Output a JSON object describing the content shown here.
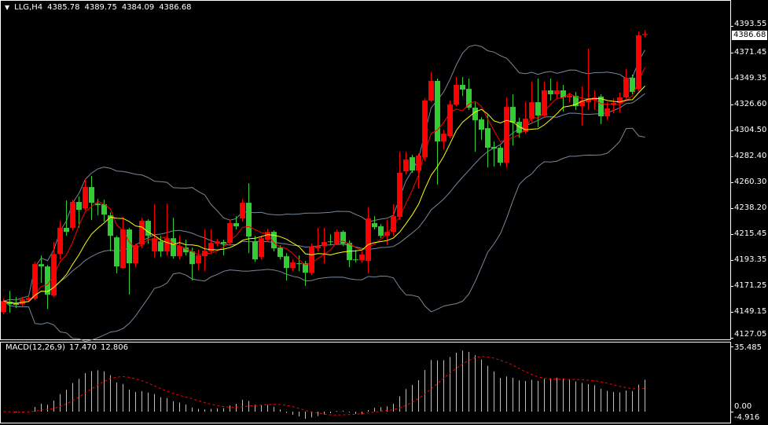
{
  "header": {
    "menu_icon": "triangle-down-icon",
    "symbol": "LLG,H4",
    "open": "4385.78",
    "high": "4389.75",
    "low": "4384.09",
    "close": "4386.68"
  },
  "macd_label": {
    "name": "MACD(12,26,9)",
    "main": "17.470",
    "signal": "12.806"
  },
  "price_axis": {
    "labels": [
      "4393.55",
      "4371.45",
      "4349.35",
      "4326.60",
      "4304.50",
      "4282.40",
      "4260.30",
      "4238.20",
      "4215.45",
      "4193.35",
      "4171.25",
      "4149.15",
      "4127.05"
    ],
    "current": "4386.68"
  },
  "macd_axis": {
    "labels": [
      "35.485",
      "0.00",
      "-4.916"
    ]
  },
  "colors": {
    "bull": "#ff0000",
    "bear": "#32cd32",
    "ma_fast": "#ff0000",
    "ma_slow": "#ffff00",
    "bands": "#778899",
    "macd_hist": "#c0c0c0",
    "macd_signal": "#ff0000",
    "frame": "#ffffff"
  },
  "chart_data": {
    "type": "candlestick",
    "symbol": "LLG",
    "timeframe": "H4",
    "ylim": [
      4127.05,
      4393.55
    ],
    "indicators": [
      "MA fast",
      "MA slow",
      "Bollinger Bands(20,2)",
      "MACD(12,26,9)"
    ],
    "macd_ylim": [
      -4.916,
      35.485
    ],
    "ohlc": [
      [
        4149.7,
        4161.1,
        4147.7,
        4159.0
      ],
      [
        4158.4,
        4167.7,
        4149.0,
        4156.4
      ],
      [
        4157.7,
        4162.4,
        4153.0,
        4155.7
      ],
      [
        4156.4,
        4162.4,
        4154.4,
        4160.4
      ],
      [
        4159.7,
        4163.1,
        4158.4,
        4161.7
      ],
      [
        4161.1,
        4192.5,
        4159.7,
        4190.5
      ],
      [
        4190.5,
        4197.9,
        4174.5,
        4188.5
      ],
      [
        4188.5,
        4189.8,
        4152.3,
        4164.4
      ],
      [
        4163.7,
        4209.3,
        4162.4,
        4199.2
      ],
      [
        4199.2,
        4227.4,
        4194.5,
        4221.4
      ],
      [
        4221.4,
        4244.8,
        4214.6,
        4218.0
      ],
      [
        4221.4,
        4245.5,
        4219.3,
        4243.5
      ],
      [
        4243.5,
        4248.2,
        4221.4,
        4236.8
      ],
      [
        4238.1,
        4262.9,
        4236.1,
        4256.2
      ],
      [
        4256.2,
        4265.6,
        4228.1,
        4242.8
      ],
      [
        4242.1,
        4246.1,
        4232.1,
        4240.8
      ],
      [
        4241.5,
        4245.5,
        4226.7,
        4232.7
      ],
      [
        4232.1,
        4234.7,
        4201.3,
        4214.6
      ],
      [
        4213.3,
        4214.6,
        4182.5,
        4188.5
      ],
      [
        4187.2,
        4230.7,
        4186.5,
        4220.0
      ],
      [
        4220.0,
        4221.4,
        4164.4,
        4191.2
      ],
      [
        4191.2,
        4207.9,
        4187.8,
        4206.6
      ],
      [
        4207.3,
        4230.1,
        4203.9,
        4227.4
      ],
      [
        4227.4,
        4228.7,
        4207.9,
        4214.6
      ],
      [
        4201.3,
        4241.5,
        4195.9,
        4212.6
      ],
      [
        4209.9,
        4214.6,
        4196.6,
        4201.3
      ],
      [
        4201.3,
        4242.1,
        4197.9,
        4212.6
      ],
      [
        4212.6,
        4230.1,
        4195.2,
        4197.2
      ],
      [
        4197.2,
        4214.6,
        4194.5,
        4205.9
      ],
      [
        4204.6,
        4211.3,
        4197.9,
        4200.6
      ],
      [
        4201.3,
        4204.6,
        4176.5,
        4190.5
      ],
      [
        4191.2,
        4202.6,
        4185.2,
        4197.9
      ],
      [
        4197.2,
        4220.0,
        4184.5,
        4201.9
      ],
      [
        4201.3,
        4220.0,
        4199.9,
        4208.6
      ],
      [
        4207.9,
        4211.9,
        4205.9,
        4209.9
      ],
      [
        4209.3,
        4211.3,
        4197.9,
        4207.9
      ],
      [
        4208.6,
        4228.1,
        4206.6,
        4225.4
      ],
      [
        4225.4,
        4231.4,
        4220.0,
        4222.7
      ],
      [
        4229.4,
        4246.1,
        4226.7,
        4242.8
      ],
      [
        4242.8,
        4259.5,
        4199.9,
        4214.0
      ],
      [
        4209.9,
        4214.6,
        4192.5,
        4194.5
      ],
      [
        4196.6,
        4214.6,
        4194.5,
        4212.6
      ],
      [
        4211.3,
        4220.7,
        4209.3,
        4218.0
      ],
      [
        4218.0,
        4219.3,
        4201.3,
        4203.9
      ],
      [
        4204.6,
        4206.6,
        4194.5,
        4196.6
      ],
      [
        4197.2,
        4199.9,
        4176.5,
        4187.2
      ],
      [
        4187.2,
        4194.5,
        4184.5,
        4191.9
      ],
      [
        4191.2,
        4197.9,
        4184.5,
        4190.5
      ],
      [
        4191.2,
        4193.2,
        4171.8,
        4183.2
      ],
      [
        4183.2,
        4207.9,
        4181.2,
        4205.3
      ],
      [
        4203.9,
        4221.4,
        4201.3,
        4205.9
      ],
      [
        4205.9,
        4221.4,
        4191.2,
        4209.3
      ],
      [
        4209.9,
        4215.9,
        4206.6,
        4209.3
      ],
      [
        4207.9,
        4220.0,
        4206.6,
        4218.0
      ],
      [
        4218.0,
        4219.3,
        4205.9,
        4207.9
      ],
      [
        4208.6,
        4210.6,
        4187.8,
        4193.9
      ],
      [
        4194.5,
        4202.6,
        4191.9,
        4193.9
      ],
      [
        4193.9,
        4201.3,
        4191.9,
        4198.6
      ],
      [
        4193.2,
        4238.8,
        4182.5,
        4229.4
      ],
      [
        4225.4,
        4231.4,
        4220.0,
        4222.0
      ],
      [
        4222.7,
        4224.7,
        4212.6,
        4214.6
      ],
      [
        4214.6,
        4228.1,
        4206.6,
        4218.0
      ],
      [
        4218.0,
        4241.5,
        4214.6,
        4231.4
      ],
      [
        4230.7,
        4286.3,
        4228.1,
        4268.3
      ],
      [
        4269.6,
        4286.3,
        4266.9,
        4279.6
      ],
      [
        4281.6,
        4283.7,
        4268.3,
        4270.3
      ],
      [
        4270.3,
        4285.0,
        4254.8,
        4283.0
      ],
      [
        4281.6,
        4331.9,
        4278.3,
        4329.9
      ],
      [
        4329.9,
        4354.0,
        4328.6,
        4346.7
      ],
      [
        4346.7,
        4348.7,
        4258.2,
        4295.0
      ],
      [
        4295.0,
        4305.1,
        4288.3,
        4301.7
      ],
      [
        4299.7,
        4329.9,
        4297.7,
        4326.5
      ],
      [
        4326.5,
        4350.0,
        4325.2,
        4343.3
      ],
      [
        4343.3,
        4350.0,
        4333.9,
        4339.3
      ],
      [
        4339.9,
        4348.7,
        4321.9,
        4323.9
      ],
      [
        4323.9,
        4328.5,
        4286.3,
        4313.1
      ],
      [
        4313.8,
        4315.8,
        4296.4,
        4305.1
      ],
      [
        4306.4,
        4317.8,
        4272.9,
        4289.7
      ],
      [
        4290.4,
        4295.0,
        4273.6,
        4289.0
      ],
      [
        4289.7,
        4291.7,
        4274.3,
        4277.0
      ],
      [
        4277.0,
        4332.6,
        4272.9,
        4324.5
      ],
      [
        4324.5,
        4335.2,
        4291.7,
        4311.1
      ],
      [
        4311.8,
        4315.2,
        4298.4,
        4302.4
      ],
      [
        4303.1,
        4328.5,
        4301.7,
        4314.5
      ],
      [
        4314.5,
        4346.0,
        4311.8,
        4328.5
      ],
      [
        4328.5,
        4348.7,
        4307.1,
        4317.2
      ],
      [
        4317.2,
        4346.0,
        4315.2,
        4338.6
      ],
      [
        4338.6,
        4348.7,
        4329.9,
        4335.3
      ],
      [
        4335.3,
        4346.0,
        4331.9,
        4338.6
      ],
      [
        4338.6,
        4343.3,
        4320.5,
        4332.6
      ],
      [
        4332.6,
        4336.6,
        4328.5,
        4333.9
      ],
      [
        4333.9,
        4337.3,
        4321.9,
        4325.2
      ],
      [
        4325.2,
        4341.9,
        4308.4,
        4329.9
      ],
      [
        4328.5,
        4374.1,
        4321.9,
        4331.9
      ],
      [
        4330.6,
        4338.6,
        4321.9,
        4332.6
      ],
      [
        4333.3,
        4335.3,
        4309.8,
        4316.5
      ],
      [
        4316.5,
        4328.5,
        4313.1,
        4323.2
      ],
      [
        4326.5,
        4331.9,
        4319.2,
        4327.9
      ],
      [
        4327.9,
        4336.6,
        4319.8,
        4332.6
      ],
      [
        4332.6,
        4356.7,
        4331.2,
        4349.3
      ],
      [
        4349.3,
        4352.0,
        4335.3,
        4337.3
      ],
      [
        4339.9,
        4388.8,
        4337.9,
        4385.5
      ],
      [
        4385.78,
        4389.75,
        4384.09,
        4386.68
      ]
    ]
  }
}
